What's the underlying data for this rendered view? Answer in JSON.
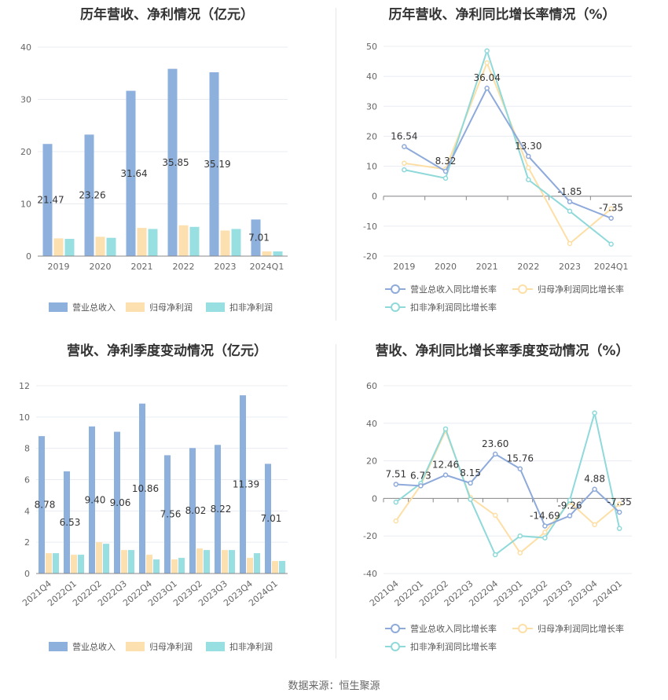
{
  "footer": "数据来源：恒生聚源",
  "colors": {
    "revenue": "#8eb0dd",
    "net_profit": "#fde0b0",
    "deducted_profit": "#98dfe1",
    "grid": "#e8ecf2",
    "axis": "#999999"
  },
  "chart_data": [
    {
      "id": "annual-bar",
      "type": "bar",
      "title": "历年营收、净利情况（亿元）",
      "categories": [
        "2019",
        "2020",
        "2021",
        "2022",
        "2023",
        "2024Q1"
      ],
      "series": [
        {
          "name": "营业总收入",
          "values": [
            21.47,
            23.26,
            31.64,
            35.85,
            35.19,
            7.01
          ]
        },
        {
          "name": "归母净利润",
          "values": [
            3.4,
            3.7,
            5.4,
            5.9,
            4.9,
            0.9
          ]
        },
        {
          "name": "扣非净利润",
          "values": [
            3.3,
            3.5,
            5.2,
            5.6,
            5.2,
            0.9
          ]
        }
      ],
      "data_labels": [
        "21.47",
        "23.26",
        "31.64",
        "35.85",
        "35.19",
        "7.01"
      ],
      "ylim": [
        0,
        40
      ],
      "yticks": [
        0,
        10,
        20,
        30,
        40
      ],
      "grid": true,
      "legend": "bottom"
    },
    {
      "id": "annual-line",
      "type": "line",
      "title": "历年营收、净利同比增长率情况（%）",
      "categories": [
        "2019",
        "2020",
        "2021",
        "2022",
        "2023",
        "2024Q1"
      ],
      "series": [
        {
          "name": "营业总收入同比增长率",
          "values": [
            16.54,
            8.32,
            36.04,
            13.3,
            -1.85,
            -7.35
          ]
        },
        {
          "name": "归母净利润同比增长率",
          "values": [
            11.0,
            9.0,
            44.5,
            9.5,
            -15.8,
            -4.2
          ]
        },
        {
          "name": "扣非净利润同比增长率",
          "values": [
            8.8,
            6.0,
            48.5,
            5.5,
            -5.0,
            -16.0
          ]
        }
      ],
      "data_labels": [
        "16.54",
        "8.32",
        "36.04",
        "13.30",
        "-1.85",
        "-7.35"
      ],
      "ylim": [
        -20,
        50
      ],
      "yticks": [
        -20,
        -10,
        0,
        10,
        20,
        30,
        40,
        50
      ],
      "grid": true,
      "legend": "bottom"
    },
    {
      "id": "quarter-bar",
      "type": "bar",
      "title": "营收、净利季度变动情况（亿元）",
      "categories": [
        "2021Q4",
        "2022Q1",
        "2022Q2",
        "2022Q3",
        "2022Q4",
        "2023Q1",
        "2023Q2",
        "2023Q3",
        "2023Q4",
        "2024Q1"
      ],
      "series": [
        {
          "name": "营业总收入",
          "values": [
            8.78,
            6.53,
            9.4,
            9.06,
            10.86,
            7.56,
            8.02,
            8.22,
            11.39,
            7.01
          ]
        },
        {
          "name": "归母净利润",
          "values": [
            1.3,
            1.2,
            2.0,
            1.5,
            1.2,
            0.9,
            1.6,
            1.5,
            1.0,
            0.8
          ]
        },
        {
          "name": "扣非净利润",
          "values": [
            1.3,
            1.2,
            1.9,
            1.5,
            0.9,
            1.0,
            1.5,
            1.5,
            1.3,
            0.8
          ]
        }
      ],
      "data_labels": [
        "8.78",
        "6.53",
        "9.40",
        "9.06",
        "10.86",
        "7.56",
        "8.02",
        "8.22",
        "11.39",
        "7.01"
      ],
      "ylim": [
        0,
        12
      ],
      "yticks": [
        0,
        2,
        4,
        6,
        8,
        10,
        12
      ],
      "grid": true,
      "legend": "bottom"
    },
    {
      "id": "quarter-line",
      "type": "line",
      "title": "营收、净利同比增长率季度变动情况（%）",
      "categories": [
        "2021Q4",
        "2022Q1",
        "2022Q2",
        "2022Q3",
        "2022Q4",
        "2023Q1",
        "2023Q2",
        "2023Q3",
        "2023Q4",
        "2024Q1"
      ],
      "series": [
        {
          "name": "营业总收入同比增长率",
          "values": [
            7.51,
            6.73,
            12.46,
            8.15,
            23.6,
            15.76,
            -14.69,
            -9.26,
            4.88,
            -7.35
          ]
        },
        {
          "name": "归母净利润同比增长率",
          "values": [
            -12.0,
            7.0,
            36.0,
            0.5,
            -9.0,
            -29.0,
            -18.0,
            -2.0,
            -14.0,
            -3.0
          ]
        },
        {
          "name": "扣非净利润同比增长率",
          "values": [
            -2.0,
            8.0,
            37.0,
            -0.5,
            -30.0,
            -20.0,
            -21.0,
            -1.0,
            45.5,
            -16.0
          ]
        }
      ],
      "data_labels": [
        "7.51",
        "6.73",
        "12.46",
        "8.15",
        "23.60",
        "15.76",
        "-14.69",
        "-9.26",
        "4.88",
        "-7.35"
      ],
      "ylim": [
        -40,
        60
      ],
      "yticks": [
        -40,
        -20,
        0,
        20,
        40,
        60
      ],
      "grid": true,
      "legend": "bottom"
    }
  ]
}
